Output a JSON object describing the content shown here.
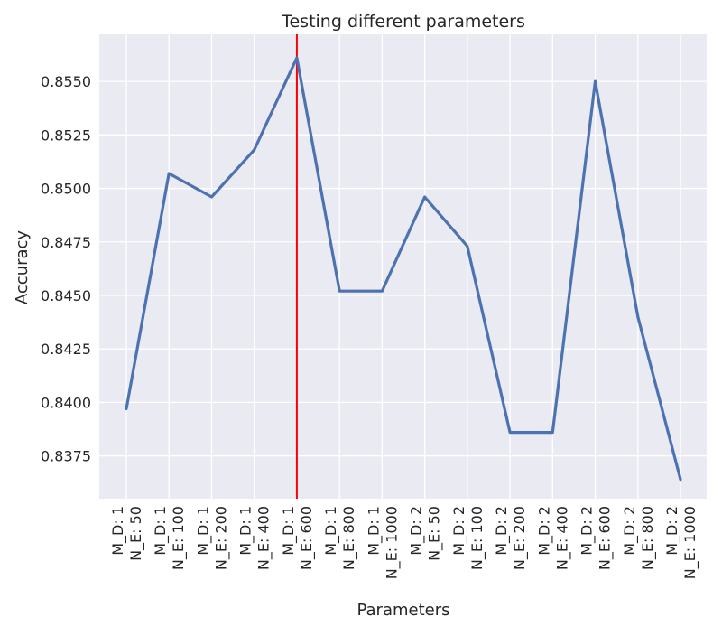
{
  "chart_data": {
    "type": "line",
    "title": "Testing different parameters",
    "xlabel": "Parameters",
    "ylabel": "Accuracy",
    "categories": [
      [
        "M_D: 1",
        "N_E: 50"
      ],
      [
        "M_D: 1",
        "N_E: 100"
      ],
      [
        "M_D: 1",
        "N_E: 200"
      ],
      [
        "M_D: 1",
        "N_E: 400"
      ],
      [
        "M_D: 1",
        "N_E: 600"
      ],
      [
        "M_D: 1",
        "N_E: 800"
      ],
      [
        "M_D: 1",
        "N_E: 1000"
      ],
      [
        "M_D: 2",
        "N_E: 50"
      ],
      [
        "M_D: 2",
        "N_E: 100"
      ],
      [
        "M_D: 2",
        "N_E: 200"
      ],
      [
        "M_D: 2",
        "N_E: 400"
      ],
      [
        "M_D: 2",
        "N_E: 600"
      ],
      [
        "M_D: 2",
        "N_E: 800"
      ],
      [
        "M_D: 2",
        "N_E: 1000"
      ]
    ],
    "series": [
      {
        "values": [
          0.8397,
          0.8507,
          0.8496,
          0.8518,
          0.8561,
          0.8452,
          0.8452,
          0.8496,
          0.8473,
          0.8386,
          0.8386,
          0.855,
          0.844,
          0.8364
        ],
        "color": "#4c72b0"
      }
    ],
    "vline": {
      "category_index": 4,
      "color": "#ff0000"
    },
    "ylim": [
      0.8355,
      0.8572
    ],
    "yticks": [
      0.8375,
      0.84,
      0.8425,
      0.845,
      0.8475,
      0.85,
      0.8525,
      0.855
    ],
    "ytick_labels": [
      "0.8375",
      "0.8400",
      "0.8425",
      "0.8450",
      "0.8475",
      "0.8500",
      "0.8525",
      "0.8550"
    ],
    "grid": true,
    "background_color": "#eaeaf2",
    "grid_color": "#ffffff"
  }
}
